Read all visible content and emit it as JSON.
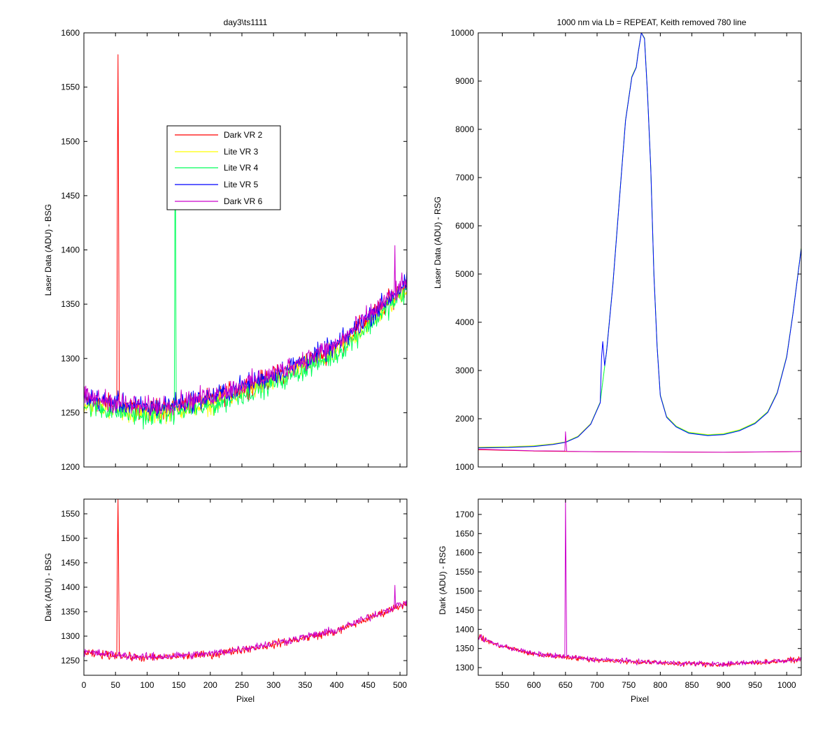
{
  "figure": {
    "background": "#ffffff",
    "legend": {
      "placement": "inside-top-center of top-left panel",
      "entries": [
        {
          "label": "Dark VR 2",
          "color": "#ff0000"
        },
        {
          "label": "Lite VR 3",
          "color": "#ffff00"
        },
        {
          "label": "Lite VR 4",
          "color": "#00ff5a"
        },
        {
          "label": "Lite VR 5",
          "color": "#0000ff"
        },
        {
          "label": "Dark VR 6",
          "color": "#cc00cc"
        }
      ]
    }
  },
  "chart_data": [
    {
      "id": "p1",
      "type": "line",
      "title": "day3\\ts1111",
      "xlabel": "",
      "ylabel": "Laser Data (ADU) - BSG",
      "xlim": [
        0,
        511
      ],
      "ylim": [
        1200,
        1600
      ],
      "xticks": [
        0,
        50,
        100,
        150,
        200,
        250,
        300,
        350,
        400,
        450,
        500
      ],
      "yticks": [
        1200,
        1250,
        1300,
        1350,
        1400,
        1450,
        1500,
        1550,
        1600
      ],
      "show_xticklabels": false,
      "grid": false,
      "baseline": {
        "x": [
          0,
          100,
          200,
          300,
          400,
          511
        ],
        "y": [
          1262,
          1252,
          1262,
          1283,
          1310,
          1368
        ]
      },
      "noise_amplitude": 14,
      "series": [
        {
          "name": "Dark VR 2",
          "color": "#ff0000",
          "offset": 0,
          "spikes": [
            {
              "x": 54,
              "y": 1580
            },
            {
              "x": 53,
              "y": 1462
            },
            {
              "x": 55,
              "y": 1425
            }
          ]
        },
        {
          "name": "Lite VR 3",
          "color": "#ffff00",
          "offset": -4,
          "spikes": []
        },
        {
          "name": "Lite VR 4",
          "color": "#00ff5a",
          "offset": -6,
          "spikes": [
            {
              "x": 144,
              "y": 1440
            },
            {
              "x": 145,
              "y": 1438
            }
          ]
        },
        {
          "name": "Lite VR 5",
          "color": "#0000ff",
          "offset": 2,
          "spikes": []
        },
        {
          "name": "Dark VR 6",
          "color": "#cc00cc",
          "offset": 3,
          "spikes": [
            {
              "x": 492,
              "y": 1404
            }
          ]
        }
      ]
    },
    {
      "id": "p2",
      "type": "line",
      "title": "1000 nm via Lb = REPEAT, Keith removed 780 line",
      "xlabel": "",
      "ylabel": "Laser Data (ADU) - RSG",
      "xlim": [
        512,
        1023
      ],
      "ylim": [
        1000,
        10000
      ],
      "xticks": [
        550,
        600,
        650,
        700,
        750,
        800,
        850,
        900,
        950,
        1000
      ],
      "yticks": [
        1000,
        2000,
        3000,
        4000,
        5000,
        6000,
        7000,
        8000,
        9000,
        10000
      ],
      "show_xticklabels": false,
      "grid": false,
      "series": [
        {
          "name": "Lite VR 3",
          "color": "#ffff00",
          "x": [
            512,
            560,
            600,
            630,
            650,
            670,
            690,
            705,
            715,
            725,
            735,
            745,
            755,
            762,
            765,
            770,
            775,
            780,
            785,
            790,
            795,
            800,
            810,
            825,
            845,
            875,
            900,
            925,
            950,
            970,
            985,
            1000,
            1010,
            1023
          ],
          "y": [
            1410,
            1420,
            1440,
            1480,
            1520,
            1640,
            1900,
            2350,
            3400,
            4800,
            6500,
            8200,
            9100,
            9300,
            9600,
            10000,
            9900,
            8700,
            7200,
            5000,
            3500,
            2500,
            2050,
            1850,
            1720,
            1670,
            1690,
            1770,
            1920,
            2150,
            2550,
            3300,
            4200,
            5550
          ]
        },
        {
          "name": "Lite VR 4",
          "color": "#00ff5a",
          "x": [
            512,
            560,
            600,
            630,
            650,
            670,
            690,
            705,
            715,
            725,
            735,
            745,
            755,
            762,
            765,
            770,
            775,
            780,
            785,
            790,
            795,
            800,
            810,
            825,
            845,
            875,
            900,
            925,
            950,
            970,
            985,
            1000,
            1010,
            1023
          ],
          "y": [
            1400,
            1410,
            1430,
            1470,
            1515,
            1630,
            1890,
            2340,
            3390,
            4790,
            6490,
            8190,
            9090,
            9290,
            9590,
            10000,
            9890,
            8690,
            7190,
            4990,
            3490,
            2490,
            2040,
            1840,
            1710,
            1660,
            1680,
            1760,
            1910,
            2140,
            2540,
            3290,
            4190,
            5540
          ]
        },
        {
          "name": "Lite VR 5",
          "color": "#0000ff",
          "x": [
            512,
            560,
            600,
            630,
            650,
            670,
            690,
            705,
            707,
            709,
            712,
            715,
            725,
            735,
            745,
            755,
            762,
            765,
            770,
            775,
            780,
            785,
            790,
            795,
            800,
            810,
            825,
            845,
            875,
            900,
            925,
            950,
            970,
            985,
            1000,
            1010,
            1023
          ],
          "y": [
            1395,
            1405,
            1425,
            1465,
            1510,
            1625,
            1885,
            2330,
            3250,
            3600,
            3100,
            3380,
            4780,
            6480,
            8180,
            9080,
            9280,
            9580,
            10000,
            9880,
            8680,
            7180,
            4980,
            3480,
            2480,
            2030,
            1830,
            1700,
            1650,
            1670,
            1750,
            1900,
            2130,
            2530,
            3280,
            4180,
            5530
          ]
        },
        {
          "name": "Dark VR 2",
          "color": "#ff0000",
          "x": [
            512,
            600,
            700,
            800,
            900,
            1000,
            1023
          ],
          "y": [
            1360,
            1330,
            1315,
            1310,
            1305,
            1315,
            1320
          ]
        },
        {
          "name": "Dark VR 6",
          "color": "#cc00cc",
          "x": [
            512,
            600,
            649,
            650,
            651,
            652,
            700,
            800,
            900,
            1000,
            1023
          ],
          "y": [
            1370,
            1335,
            1330,
            1730,
            1520,
            1325,
            1318,
            1312,
            1306,
            1318,
            1322
          ]
        }
      ]
    },
    {
      "id": "p3",
      "type": "line",
      "title": "",
      "xlabel": "Pixel",
      "ylabel": "Dark (ADU) - BSG",
      "xlim": [
        0,
        511
      ],
      "ylim": [
        1220,
        1580
      ],
      "xticks": [
        0,
        50,
        100,
        150,
        200,
        250,
        300,
        350,
        400,
        450,
        500
      ],
      "yticks": [
        1250,
        1300,
        1350,
        1400,
        1450,
        1500,
        1550
      ],
      "grid": false,
      "baseline": {
        "x": [
          0,
          100,
          200,
          300,
          400,
          511
        ],
        "y": [
          1265,
          1255,
          1262,
          1283,
          1310,
          1368
        ]
      },
      "noise_amplitude": 12,
      "series": [
        {
          "name": "Dark VR 2",
          "color": "#ff0000",
          "offset": 0,
          "spikes": [
            {
              "x": 54,
              "y": 1580
            },
            {
              "x": 53,
              "y": 1462
            },
            {
              "x": 55,
              "y": 1425
            }
          ]
        },
        {
          "name": "Dark VR 6",
          "color": "#cc00cc",
          "offset": 2,
          "spikes": [
            {
              "x": 492,
              "y": 1404
            }
          ]
        }
      ]
    },
    {
      "id": "p4",
      "type": "line",
      "title": "",
      "xlabel": "Pixel",
      "ylabel": "Dark (ADU) - RSG",
      "xlim": [
        512,
        1023
      ],
      "ylim": [
        1280,
        1740
      ],
      "xticks": [
        550,
        600,
        650,
        700,
        750,
        800,
        850,
        900,
        950,
        1000
      ],
      "yticks": [
        1300,
        1350,
        1400,
        1450,
        1500,
        1550,
        1600,
        1650,
        1700
      ],
      "grid": false,
      "baseline": {
        "x": [
          512,
          540,
          600,
          700,
          800,
          900,
          1000,
          1023
        ],
        "y": [
          1380,
          1360,
          1335,
          1320,
          1312,
          1308,
          1318,
          1322
        ]
      },
      "noise_amplitude": 10,
      "series": [
        {
          "name": "Dark VR 2",
          "color": "#ff0000",
          "offset": 0,
          "spikes": []
        },
        {
          "name": "Dark VR 6",
          "color": "#cc00cc",
          "offset": 1,
          "spikes": [
            {
              "x": 650,
              "y": 1740
            },
            {
              "x": 651,
              "y": 1530
            }
          ]
        }
      ]
    }
  ]
}
